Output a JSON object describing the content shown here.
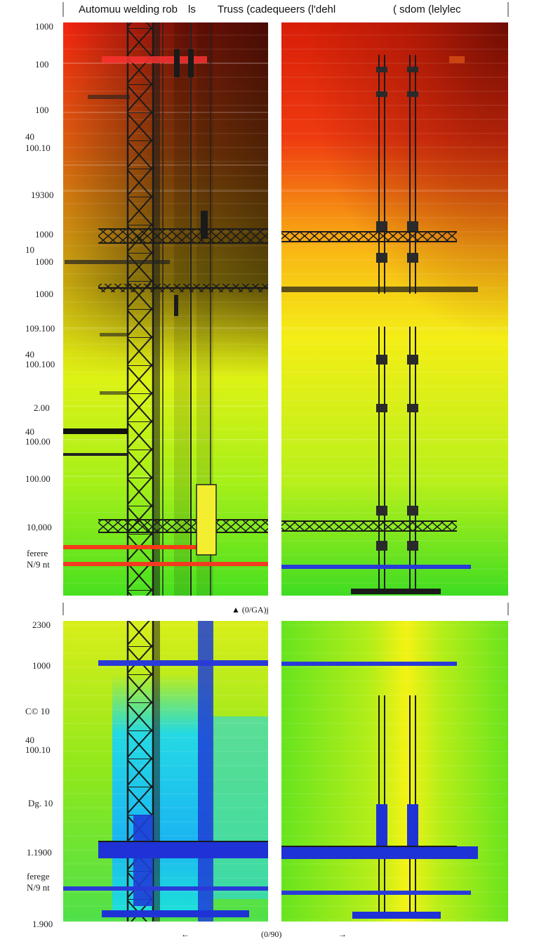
{
  "header": {
    "title_left": "Automuu welding rob",
    "title_left_suffix": "ls",
    "title_mid": "Truss (cadequeers (l'dehl",
    "title_right": "( sdom (lelylec"
  },
  "top_axis_labels": [
    "1000",
    "100",
    "100",
    "40",
    "100.10",
    "19300",
    "1000",
    "10",
    "1000",
    "1000",
    "109.100",
    "40",
    "100.100",
    "2.00",
    "40",
    "100.00",
    "100.00",
    "10,000",
    "ferere",
    "N/9 nt"
  ],
  "bottom_axis_labels": [
    "2300",
    "1000",
    "C© 10",
    "40",
    "100.10",
    "Dg. 10",
    "1.1900",
    "ferege",
    "N/9 nt",
    "1.900"
  ],
  "middle_marker": "▲ (0/GA)j",
  "footer": {
    "left_arrow": "←",
    "center_label": "(0/90)",
    "right_arrow": "→"
  }
}
